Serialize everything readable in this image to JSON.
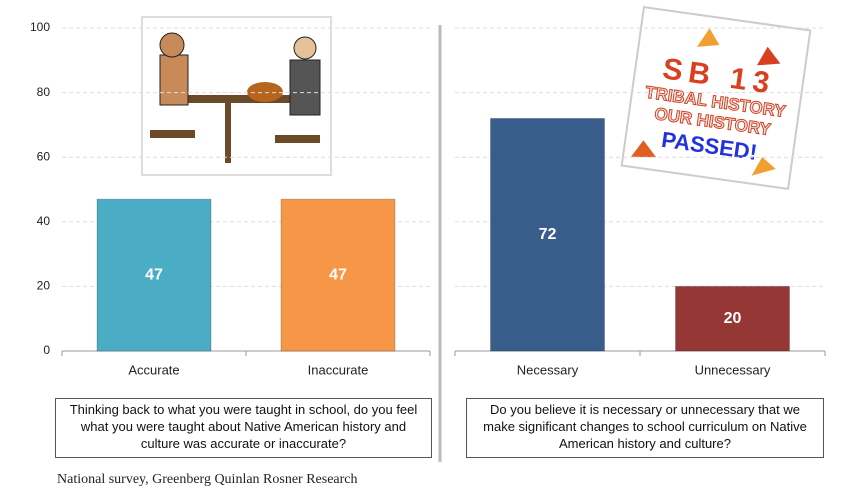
{
  "chart_data": [
    {
      "type": "bar",
      "categories": [
        "Accurate",
        "Inaccurate"
      ],
      "values": [
        47,
        47
      ],
      "colors": [
        "#4bacc6",
        "#f79646"
      ],
      "ylim": [
        0,
        100
      ],
      "yticks": [
        0,
        20,
        40,
        60,
        80,
        100
      ],
      "grid": true,
      "tick_labels": true,
      "question": "Thinking back to what you were taught in school, do you feel what you were taught about Native American history and culture was accurate or inaccurate?"
    },
    {
      "type": "bar",
      "categories": [
        "Necessary",
        "Unnecessary"
      ],
      "values": [
        72,
        20
      ],
      "colors": [
        "#385d8a",
        "#953735"
      ],
      "ylim": [
        0,
        100
      ],
      "yticks": [
        0,
        20,
        40,
        60,
        80,
        100
      ],
      "grid": true,
      "tick_labels": false,
      "question": "Do you believe it is necessary or unnecessary that we make significant changes to school curriculum on Native American history and culture?",
      "annotations": [
        "SB 13",
        "TRIBAL HISTORY",
        "OUR HISTORY",
        "PASSED!"
      ]
    }
  ],
  "source": "National survey, Greenberg Quinlan Rosner Research"
}
